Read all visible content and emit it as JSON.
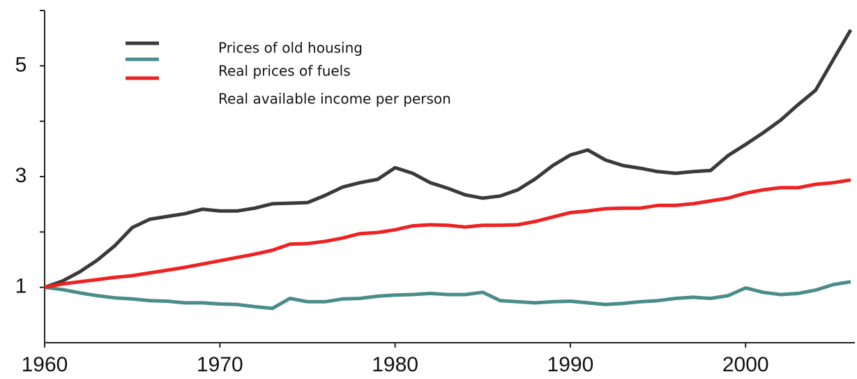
{
  "chart_data": {
    "type": "line",
    "x": [
      1960,
      1961,
      1962,
      1963,
      1964,
      1965,
      1966,
      1967,
      1968,
      1969,
      1970,
      1971,
      1972,
      1973,
      1974,
      1975,
      1976,
      1977,
      1978,
      1979,
      1980,
      1981,
      1982,
      1983,
      1984,
      1985,
      1986,
      1987,
      1988,
      1989,
      1990,
      1991,
      1992,
      1993,
      1994,
      1995,
      1996,
      1997,
      1998,
      1999,
      2000,
      2001,
      2002,
      2003,
      2004,
      2005,
      2006
    ],
    "series": [
      {
        "name": "Prices of old housing",
        "color": "#3a3a3a",
        "values": [
          1.0,
          1.11,
          1.28,
          1.49,
          1.75,
          2.08,
          2.23,
          2.28,
          2.33,
          2.41,
          2.38,
          2.38,
          2.43,
          2.51,
          2.52,
          2.53,
          2.66,
          2.81,
          2.89,
          2.95,
          3.16,
          3.06,
          2.89,
          2.79,
          2.67,
          2.61,
          2.65,
          2.76,
          2.96,
          3.2,
          3.39,
          3.48,
          3.3,
          3.2,
          3.15,
          3.09,
          3.06,
          3.09,
          3.11,
          3.38,
          3.58,
          3.79,
          4.02,
          4.3,
          4.56,
          5.11,
          5.65
        ]
      },
      {
        "name": "Real prices of fuels",
        "color": "#4a8c8a",
        "values": [
          1.0,
          0.96,
          0.9,
          0.85,
          0.81,
          0.79,
          0.76,
          0.75,
          0.72,
          0.72,
          0.7,
          0.69,
          0.65,
          0.62,
          0.8,
          0.74,
          0.74,
          0.79,
          0.8,
          0.84,
          0.86,
          0.87,
          0.89,
          0.87,
          0.87,
          0.91,
          0.76,
          0.74,
          0.72,
          0.74,
          0.75,
          0.72,
          0.69,
          0.71,
          0.74,
          0.76,
          0.8,
          0.82,
          0.8,
          0.85,
          0.99,
          0.91,
          0.87,
          0.89,
          0.95,
          1.05,
          1.1
        ]
      },
      {
        "name": "Real available income per person",
        "color": "#ee2222",
        "values": [
          1.0,
          1.06,
          1.1,
          1.14,
          1.18,
          1.21,
          1.26,
          1.31,
          1.36,
          1.42,
          1.48,
          1.54,
          1.6,
          1.67,
          1.78,
          1.79,
          1.83,
          1.89,
          1.97,
          1.99,
          2.04,
          2.11,
          2.13,
          2.12,
          2.09,
          2.12,
          2.12,
          2.13,
          2.19,
          2.27,
          2.35,
          2.38,
          2.42,
          2.43,
          2.43,
          2.48,
          2.48,
          2.51,
          2.56,
          2.61,
          2.7,
          2.76,
          2.8,
          2.8,
          2.86,
          2.89,
          2.94
        ]
      }
    ],
    "xlim": [
      1960,
      2006
    ],
    "xticks": [
      1960,
      1970,
      1980,
      1990,
      2000
    ],
    "ylim": [
      0,
      6
    ],
    "yticks": [
      1,
      3,
      5
    ],
    "yticks_minor": [
      2,
      4,
      6
    ]
  }
}
